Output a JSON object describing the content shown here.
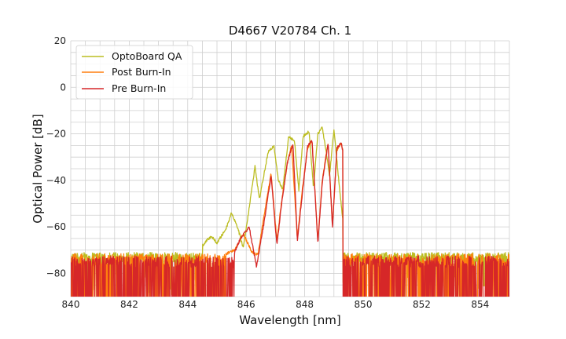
{
  "chart_data": {
    "type": "line",
    "title": "D4667 V20784 Ch. 1",
    "xlabel": "Wavelength [nm]",
    "ylabel": "Optical Power [dB]",
    "xlim": [
      840,
      855
    ],
    "ylim": [
      -90,
      20
    ],
    "xticks": [
      840,
      842,
      844,
      846,
      848,
      850,
      852,
      854
    ],
    "xtick_labels": [
      "840",
      "842",
      "844",
      "846",
      "848",
      "850",
      "852",
      "854"
    ],
    "xminor_step": 0.5,
    "yticks": [
      20,
      0,
      -20,
      -40,
      -60,
      -80
    ],
    "ytick_labels": [
      "20",
      "0",
      "−20",
      "−40",
      "−60",
      "−80"
    ],
    "yminor_step": 5,
    "grid": true,
    "legend_position": "upper-left",
    "series": [
      {
        "name": "OptoBoard QA",
        "color": "#bcbd22",
        "noise_floor": -73,
        "noise_region": [
          [
            840,
            845.5
          ],
          [
            849.4,
            855
          ]
        ],
        "band_edges": [
          844.5,
          849.3
        ],
        "points": [
          [
            840.0,
            -72
          ],
          [
            843.0,
            -72
          ],
          [
            844.0,
            -70
          ],
          [
            844.5,
            -68
          ],
          [
            844.8,
            -64
          ],
          [
            845.0,
            -67
          ],
          [
            845.3,
            -61
          ],
          [
            845.5,
            -54
          ],
          [
            845.7,
            -60
          ],
          [
            845.9,
            -69
          ],
          [
            846.1,
            -52
          ],
          [
            846.3,
            -34
          ],
          [
            846.45,
            -48
          ],
          [
            846.6,
            -38
          ],
          [
            846.75,
            -28
          ],
          [
            846.95,
            -25
          ],
          [
            847.1,
            -40
          ],
          [
            847.25,
            -44
          ],
          [
            847.45,
            -21
          ],
          [
            847.65,
            -23
          ],
          [
            847.8,
            -44
          ],
          [
            847.95,
            -21
          ],
          [
            848.15,
            -19
          ],
          [
            848.3,
            -43
          ],
          [
            848.45,
            -20
          ],
          [
            848.6,
            -17
          ],
          [
            848.75,
            -29
          ],
          [
            848.85,
            -38
          ],
          [
            849.0,
            -18
          ],
          [
            849.15,
            -38
          ],
          [
            849.3,
            -57
          ],
          [
            849.4,
            -70
          ],
          [
            855.0,
            -74
          ]
        ]
      },
      {
        "name": "Post Burn-In",
        "color": "#ff7f0e",
        "noise_floor": -75,
        "noise_region": [
          [
            840,
            845.8
          ],
          [
            849.3,
            855
          ]
        ],
        "band_edges": [
          845.3,
          849.3
        ],
        "points": [
          [
            840.0,
            -75
          ],
          [
            845.0,
            -74
          ],
          [
            845.4,
            -71
          ],
          [
            845.6,
            -70
          ],
          [
            845.9,
            -63
          ],
          [
            846.2,
            -71
          ],
          [
            846.4,
            -72
          ],
          [
            846.6,
            -56
          ],
          [
            846.85,
            -37
          ],
          [
            847.05,
            -66
          ],
          [
            847.2,
            -50
          ],
          [
            847.4,
            -33
          ],
          [
            847.55,
            -25
          ],
          [
            847.75,
            -65
          ],
          [
            847.9,
            -46
          ],
          [
            848.1,
            -26
          ],
          [
            848.25,
            -23
          ],
          [
            848.45,
            -66
          ],
          [
            848.6,
            -40
          ],
          [
            848.8,
            -24
          ],
          [
            848.95,
            -60
          ],
          [
            849.1,
            -27
          ],
          [
            849.25,
            -24
          ],
          [
            849.35,
            -30
          ],
          [
            849.5,
            -75
          ],
          [
            855.0,
            -75
          ]
        ]
      },
      {
        "name": "Pre Burn-In",
        "color": "#d62728",
        "noise_floor": -76,
        "noise_region": [
          [
            840,
            845.9
          ],
          [
            849.3,
            855
          ]
        ],
        "band_edges": [
          845.6,
          849.3
        ],
        "points": [
          [
            840.0,
            -76
          ],
          [
            845.5,
            -74
          ],
          [
            845.8,
            -65
          ],
          [
            846.1,
            -60
          ],
          [
            846.35,
            -77
          ],
          [
            846.6,
            -59
          ],
          [
            846.85,
            -38
          ],
          [
            847.05,
            -68
          ],
          [
            847.2,
            -51
          ],
          [
            847.4,
            -33
          ],
          [
            847.6,
            -24
          ],
          [
            847.75,
            -66
          ],
          [
            847.9,
            -48
          ],
          [
            848.1,
            -25
          ],
          [
            848.25,
            -23
          ],
          [
            848.45,
            -67
          ],
          [
            848.6,
            -41
          ],
          [
            848.8,
            -24
          ],
          [
            848.95,
            -60
          ],
          [
            849.1,
            -26
          ],
          [
            849.25,
            -24
          ],
          [
            849.35,
            -30
          ],
          [
            849.5,
            -76
          ],
          [
            855.0,
            -76
          ]
        ]
      }
    ]
  }
}
